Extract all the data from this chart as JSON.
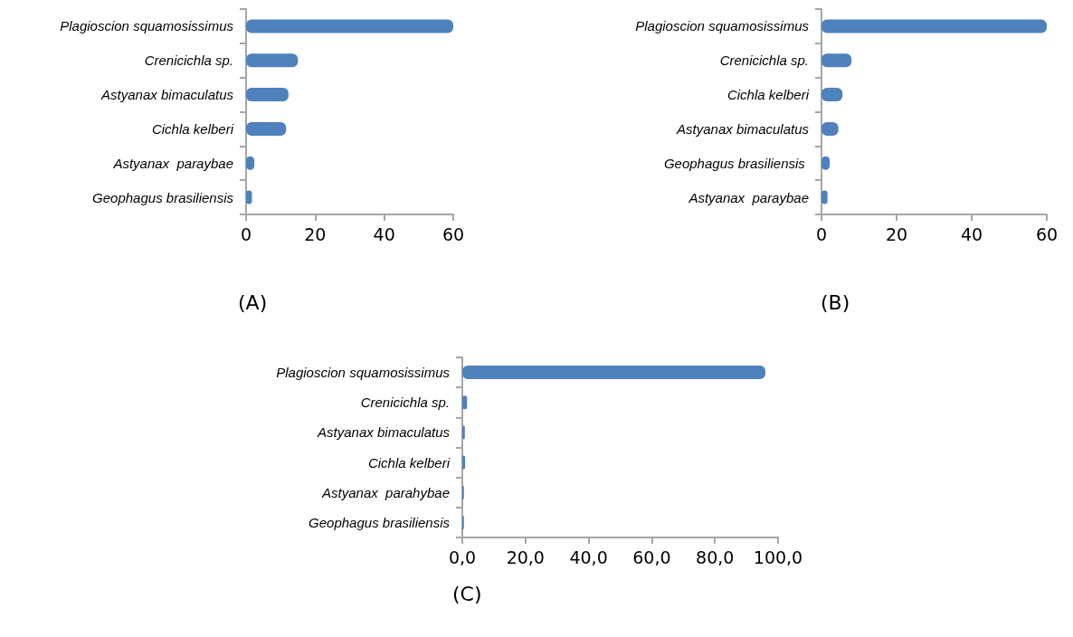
{
  "chart_data": [
    {
      "type": "bar",
      "orientation": "horizontal",
      "title": "(A)",
      "categories": [
        "Plagioscion squamosissimus",
        "Crenicichla sp.",
        "Astyanax bimaculatus",
        "Cichla kelberi",
        "Astyanax  paraybae",
        "Geophagus brasiliensis"
      ],
      "values": [
        60,
        15,
        12.3,
        11.6,
        2.4,
        1.7
      ],
      "color": "#4f81bd",
      "xlim": [
        0,
        60
      ],
      "xticks": [
        0,
        20,
        40,
        60
      ]
    },
    {
      "type": "bar",
      "orientation": "horizontal",
      "title": "(B)",
      "categories": [
        "Plagioscion squamosissimus",
        "Crenicichla sp.",
        "Cichla kelberi",
        "Astyanax bimaculatus",
        "Geophagus brasiliensis ",
        "Astyanax  paraybae"
      ],
      "values": [
        60,
        8,
        5.6,
        4.5,
        2.2,
        1.6
      ],
      "color": "#4f81bd",
      "xlim": [
        0,
        60
      ],
      "xticks": [
        0,
        20,
        40,
        60
      ]
    },
    {
      "type": "bar",
      "orientation": "horizontal",
      "title": "(C)",
      "categories": [
        "Plagioscion squamosissimus",
        "Crenicichla sp.",
        "Astyanax bimaculatus",
        "Cichla kelberi",
        "Astyanax  parahybae",
        "Geophagus brasiliensis"
      ],
      "values": [
        96,
        1.5,
        0.8,
        0.9,
        0.5,
        0.5
      ],
      "color": "#4f81bd",
      "xlim": [
        0,
        100
      ],
      "xticks": [
        {
          "value": 0,
          "label": "0,0"
        },
        {
          "value": 20,
          "label": "20,0"
        },
        {
          "value": 40,
          "label": "40,0"
        },
        {
          "value": 60,
          "label": "60,0"
        },
        {
          "value": 80,
          "label": "80,0"
        },
        {
          "value": 100,
          "label": "100,0"
        }
      ]
    }
  ]
}
